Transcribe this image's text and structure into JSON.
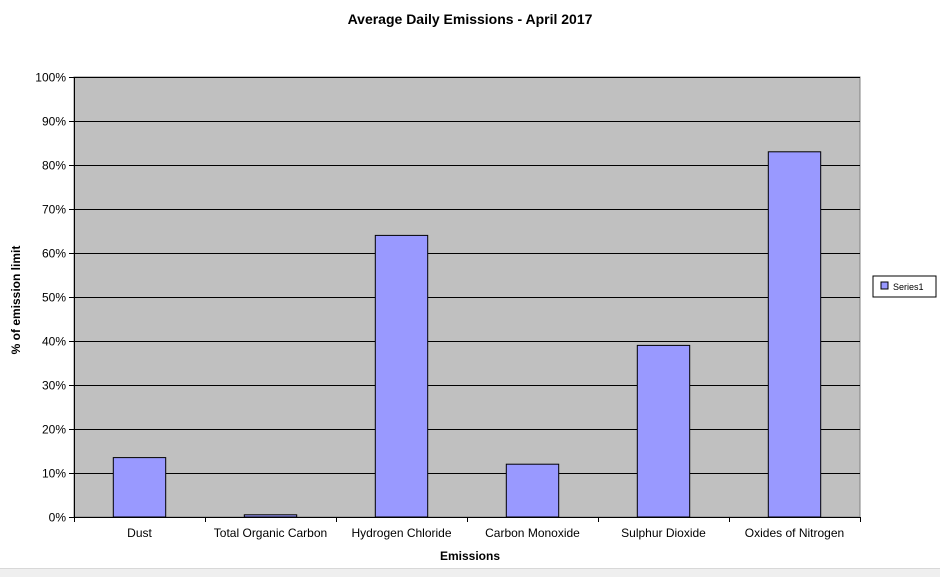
{
  "chart_data": {
    "type": "bar",
    "title": "Average Daily Emissions - April 2017",
    "xlabel": "Emissions",
    "ylabel": "% of emission limit",
    "categories": [
      "Dust",
      "Total Organic Carbon",
      "Hydrogen Chloride",
      "Carbon Monoxide",
      "Sulphur Dioxide",
      "Oxides of Nitrogen"
    ],
    "series": [
      {
        "name": "Series1",
        "values": [
          13.5,
          0.5,
          64,
          12,
          39,
          83
        ]
      }
    ],
    "ylim": [
      0,
      100
    ],
    "yticks": [
      "0%",
      "10%",
      "20%",
      "30%",
      "40%",
      "50%",
      "60%",
      "70%",
      "80%",
      "90%",
      "100%"
    ],
    "grid": true,
    "legend_position": "right",
    "colors": {
      "bar_fill": "#9999ff",
      "bar_stroke": "#000000",
      "plot_background": "#c0c0c0",
      "gridline": "#000000"
    }
  }
}
